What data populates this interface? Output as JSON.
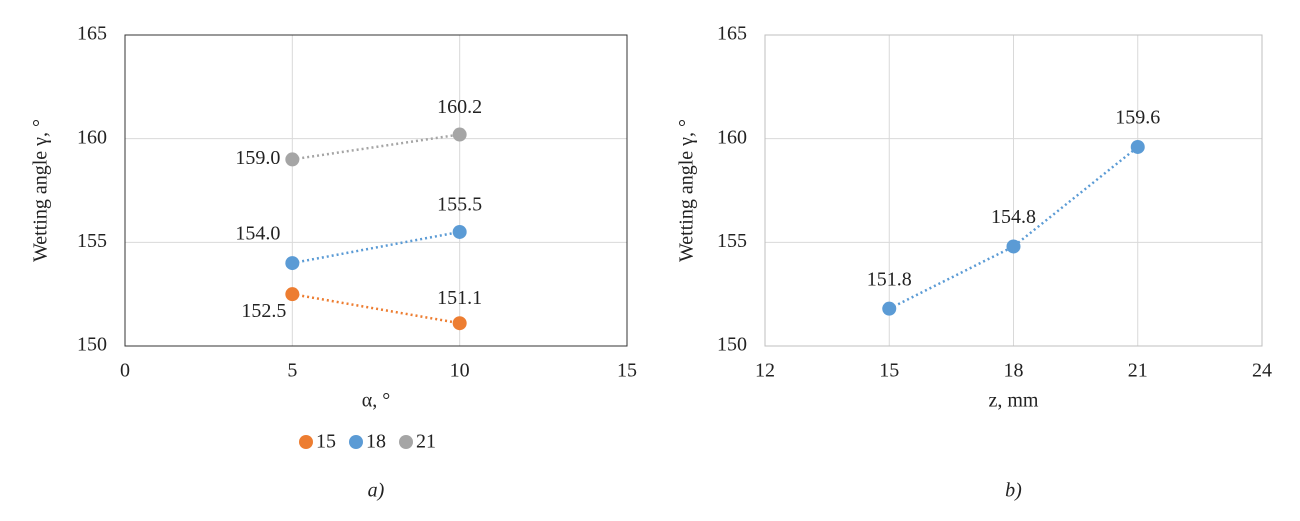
{
  "chart_data": [
    {
      "type": "scatter",
      "caption": "a)",
      "xlabel": "α, °",
      "ylabel": "Wetting angle γ, °",
      "x": [
        5,
        10
      ],
      "xlim": [
        0,
        15
      ],
      "xticks": [
        0,
        5,
        10,
        15
      ],
      "ylim": [
        150,
        165
      ],
      "yticks": [
        150,
        155,
        160,
        165
      ],
      "grid": true,
      "legend": "bottom",
      "line_style": "dotted",
      "series": [
        {
          "name": "15",
          "color": "#ed7d31",
          "values": [
            152.5,
            151.1
          ],
          "value_labels": [
            "152.5",
            "151.1"
          ]
        },
        {
          "name": "18",
          "color": "#5b9bd5",
          "values": [
            154.0,
            155.5
          ],
          "value_labels": [
            "154.0",
            "155.5"
          ]
        },
        {
          "name": "21",
          "color": "#a5a5a5",
          "values": [
            159.0,
            160.2
          ],
          "value_labels": [
            "159.0",
            "160.2"
          ]
        }
      ]
    },
    {
      "type": "scatter",
      "caption": "b)",
      "xlabel": "z, mm",
      "ylabel": "Wetting angle γ, °",
      "x": [
        15,
        18,
        21
      ],
      "xlim": [
        12,
        24
      ],
      "xticks": [
        12,
        15,
        18,
        21,
        24
      ],
      "ylim": [
        150,
        165
      ],
      "yticks": [
        150,
        155,
        160,
        165
      ],
      "grid": true,
      "line_style": "dotted",
      "color": "#5b9bd5",
      "values": [
        151.8,
        154.8,
        159.6
      ]
    }
  ]
}
